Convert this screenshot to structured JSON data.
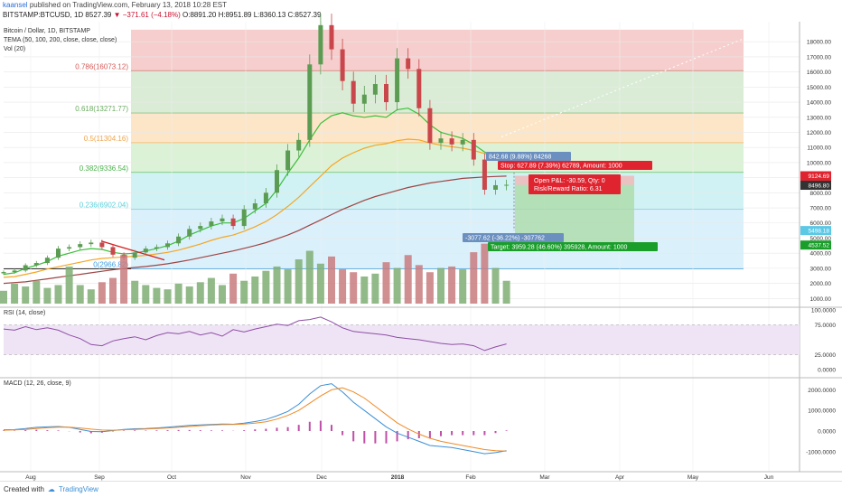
{
  "header": {
    "username": "kaansel",
    "published_text": "published on TradingView.com, February 13, 2018 10:28 EST",
    "ticker_text": "BITSTAMP:BTCUSD, 1D  8527.39",
    "change_text": "▼ −371.61 (−4.18%)",
    "ohlc_text": "O:8891.20 H:8951.89 L:8360.13 C:8527.39"
  },
  "legend": {
    "line1": "Bitcoin / Dollar, 1D, BITSTAMP",
    "line2": "TEMA (50, 100, 200, close, close, close)",
    "line3": "Vol (20)"
  },
  "footer": {
    "created_with": "Created with",
    "brand": "TradingView"
  },
  "colors": {
    "up": "#5b9c52",
    "down": "#c9474b",
    "ema50": "#3bbf3b",
    "ema100": "#f5a623",
    "ema200": "#a04444",
    "rsi": "#8e4ea6",
    "macd": "#3a8fd6",
    "signal": "#f08a24",
    "hist": "#c04fa8"
  },
  "chart_data": [
    {
      "type": "line",
      "title": "Bitcoin / Dollar, 1D, BITSTAMP",
      "x_ticks": [
        "Aug",
        "Sep",
        "Oct",
        "Nov",
        "Dec",
        "2018",
        "Feb",
        "Mar",
        "Apr",
        "May",
        "Jun"
      ],
      "y_ticks": [
        1000,
        2000,
        3000,
        4000,
        5000,
        6000,
        7000,
        8000,
        9000,
        10000,
        11000,
        12000,
        13000,
        14000,
        15000,
        16000,
        17000,
        18000
      ],
      "ylim": [
        0,
        18800
      ],
      "price_close": [
        2750,
        2850,
        3200,
        3350,
        3700,
        4300,
        4400,
        4600,
        4700,
        4400,
        3900,
        3700,
        4050,
        4300,
        4400,
        4650,
        5100,
        5600,
        5800,
        6100,
        6300,
        5800,
        6900,
        7300,
        8000,
        9500,
        10800,
        11500,
        16500,
        19100,
        17500,
        15400,
        13900,
        14500,
        15200,
        14000,
        16900,
        16200,
        13600,
        11300,
        11600,
        11200,
        11500,
        10200,
        8200,
        8500,
        8527
      ],
      "series": [
        {
          "name": "TEMA 50",
          "values": [
            2600,
            2700,
            3000,
            3200,
            3450,
            3800,
            4000,
            4200,
            4300,
            4250,
            4050,
            3950,
            4000,
            4150,
            4300,
            4500,
            4800,
            5200,
            5500,
            5800,
            6000,
            6000,
            6300,
            6800,
            7300,
            8200,
            9300,
            10300,
            11500,
            12600,
            13100,
            13300,
            13100,
            13000,
            13100,
            13000,
            13500,
            13600,
            13200,
            12500,
            12000,
            11800,
            11600,
            11200,
            10700,
            10400,
            10100
          ]
        },
        {
          "name": "TEMA 100",
          "values": [
            2400,
            2450,
            2600,
            2750,
            2950,
            3100,
            3250,
            3400,
            3550,
            3650,
            3700,
            3750,
            3800,
            3850,
            3950,
            4050,
            4200,
            4400,
            4600,
            4850,
            5050,
            5200,
            5450,
            5750,
            6100,
            6550,
            7100,
            7700,
            8400,
            9100,
            9800,
            10300,
            10650,
            10950,
            11150,
            11250,
            11450,
            11550,
            11500,
            11300,
            11150,
            11050,
            10950,
            10800,
            10600,
            10450,
            10300
          ]
        },
        {
          "name": "TEMA 200",
          "values": [
            2000,
            2050,
            2100,
            2200,
            2300,
            2400,
            2500,
            2600,
            2700,
            2800,
            2900,
            2980,
            3050,
            3120,
            3200,
            3300,
            3420,
            3550,
            3700,
            3850,
            4000,
            4150,
            4320,
            4500,
            4700,
            4950,
            5200,
            5500,
            5850,
            6200,
            6550,
            6900,
            7200,
            7500,
            7750,
            7950,
            8150,
            8350,
            8500,
            8650,
            8750,
            8850,
            8950,
            9000,
            9050,
            9080,
            9100
          ]
        }
      ],
      "fibonacci": [
        {
          "ratio": "0.786",
          "price": "16073.12",
          "label": "0.786(16073.12)"
        },
        {
          "ratio": "0.618",
          "price": "13271.77",
          "label": "0.618(13271.77)"
        },
        {
          "ratio": "0.5",
          "price": "11304.16",
          "label": "0.5(11304.16)"
        },
        {
          "ratio": "0.382",
          "price": "9336.54",
          "label": "0.382(9336.54)"
        },
        {
          "ratio": "0.236",
          "price": "6902.04",
          "label": "0.236(6902.04)"
        },
        {
          "ratio": "0",
          "price": "2966.82",
          "label": "0(2966.82)"
        }
      ],
      "price_tags": [
        {
          "price": 9124.69,
          "text": "9124.69",
          "color": "#e0242f"
        },
        {
          "price": 8527.39,
          "text": "8527.39",
          "color": "#e0242f"
        },
        {
          "price": 8496.8,
          "text": "8496.80",
          "color": "#333333"
        },
        {
          "price": 5498.18,
          "text": "5498.18",
          "color": "#5bc8e6"
        },
        {
          "price": 4537.52,
          "text": "4537.52",
          "color": "#1a9e2a"
        }
      ],
      "position": {
        "top_range_text": "842.68 (9.88%) 84268",
        "stop_text": "Stop: 627.89 (7.39%) 62789, Amount: 1000",
        "open_pnl_text": "Open P&L: -30.59, Qty: 0",
        "rr_text": "Risk/Reward Ratio: 6.31",
        "bottom_range_text": "-3077.62 (-36.22%) -307762",
        "target_text": "Target: 3959.28 (46.60%) 395928, Amount: 1000"
      }
    },
    {
      "type": "bar",
      "title": "Vol (20)",
      "y_ticks": [
        1000,
        2000,
        3000
      ],
      "values": [
        900,
        1400,
        1200,
        1600,
        1100,
        1300,
        2600,
        1300,
        1000,
        1500,
        1800,
        3400,
        1600,
        1300,
        1100,
        1000,
        1400,
        1200,
        1500,
        1800,
        1300,
        2100,
        1600,
        1900,
        2300,
        2600,
        2400,
        3100,
        3700,
        2800,
        3300,
        2400,
        2200,
        1900,
        2100,
        2900,
        2500,
        3400,
        2700,
        2200,
        2500,
        2600,
        2400,
        3600,
        4200,
        2500,
        1600
      ]
    },
    {
      "type": "line",
      "title": "RSI (14, close)",
      "y_ticks": [
        "100.0000",
        "75.0000",
        "25.0000",
        "0.0000"
      ],
      "ylim": [
        0,
        100
      ],
      "values": [
        68,
        66,
        72,
        67,
        70,
        66,
        58,
        52,
        42,
        40,
        48,
        52,
        55,
        50,
        57,
        62,
        60,
        64,
        58,
        62,
        56,
        67,
        63,
        68,
        72,
        76,
        74,
        82,
        84,
        88,
        80,
        70,
        64,
        62,
        60,
        58,
        54,
        52,
        50,
        47,
        44,
        42,
        43,
        40,
        32,
        38,
        43
      ]
    },
    {
      "type": "line",
      "title": "MACD (12, 26, close, 9)",
      "y_ticks": [
        "2000.0000",
        "1000.0000",
        "0.0000",
        "-1000.0000"
      ],
      "ylim": [
        -1400,
        2600
      ],
      "series": [
        {
          "name": "MACD",
          "values": [
            60,
            70,
            120,
            180,
            200,
            220,
            180,
            80,
            -20,
            -30,
            20,
            80,
            110,
            120,
            150,
            190,
            230,
            270,
            300,
            320,
            340,
            330,
            380,
            460,
            560,
            740,
            950,
            1300,
            1800,
            2200,
            2300,
            1900,
            1400,
            1000,
            600,
            200,
            -100,
            -300,
            -500,
            -700,
            -750,
            -800,
            -900,
            -1000,
            -1100,
            -1050,
            -950
          ]
        },
        {
          "name": "Signal",
          "values": [
            40,
            55,
            80,
            120,
            160,
            190,
            190,
            150,
            90,
            50,
            40,
            60,
            80,
            100,
            120,
            150,
            180,
            220,
            260,
            290,
            310,
            320,
            340,
            380,
            450,
            580,
            760,
            1000,
            1350,
            1700,
            2000,
            2100,
            1900,
            1600,
            1200,
            800,
            400,
            100,
            -150,
            -350,
            -500,
            -600,
            -700,
            -800,
            -900,
            -950,
            -980
          ]
        }
      ],
      "x_ticks": [
        "Aug",
        "Sep",
        "Oct",
        "Nov",
        "Dec",
        "2018",
        "Feb",
        "Mar",
        "Apr",
        "May",
        "Jun"
      ]
    }
  ]
}
